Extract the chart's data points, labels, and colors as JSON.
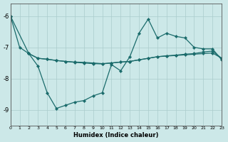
{
  "xlabel": "Humidex (Indice chaleur)",
  "background_color": "#cce8e8",
  "grid_color": "#aacccc",
  "line_color": "#1a6b6b",
  "xlim": [
    0,
    23
  ],
  "ylim": [
    -9.5,
    -5.6
  ],
  "yticks": [
    -9,
    -8,
    -7,
    -6
  ],
  "xticks": [
    0,
    1,
    2,
    3,
    4,
    5,
    6,
    7,
    8,
    9,
    10,
    11,
    12,
    13,
    14,
    15,
    16,
    17,
    18,
    19,
    20,
    21,
    22,
    23
  ],
  "line1_x": [
    0,
    1,
    2,
    3,
    4,
    5,
    6,
    7,
    8,
    9,
    10,
    11,
    12,
    13,
    14,
    15,
    16,
    17,
    18,
    19,
    20,
    21,
    22,
    23
  ],
  "line1_y": [
    -6.0,
    -7.0,
    -7.2,
    -7.6,
    -8.45,
    -8.95,
    -8.85,
    -8.75,
    -8.7,
    -8.55,
    -8.45,
    -7.55,
    -7.75,
    -7.3,
    -6.55,
    -6.1,
    -6.7,
    -6.55,
    -6.65,
    -6.7,
    -7.0,
    -7.05,
    -7.05,
    -7.4
  ],
  "line2_x": [
    0,
    2,
    3,
    4,
    5,
    6,
    7,
    8,
    9,
    10,
    11,
    12,
    13,
    14,
    15,
    16,
    17,
    18,
    19,
    20,
    21,
    22,
    23
  ],
  "line2_y": [
    -6.0,
    -7.2,
    -7.35,
    -7.38,
    -7.42,
    -7.45,
    -7.48,
    -7.5,
    -7.52,
    -7.53,
    -7.5,
    -7.47,
    -7.45,
    -7.4,
    -7.35,
    -7.3,
    -7.27,
    -7.25,
    -7.22,
    -7.2,
    -7.15,
    -7.12,
    -7.35
  ],
  "line3_x": [
    2,
    3,
    4,
    5,
    6,
    7,
    8,
    9,
    10,
    11,
    12,
    13,
    14,
    15,
    16,
    17,
    18,
    19,
    20,
    21,
    22,
    23
  ],
  "line3_y": [
    -7.2,
    -7.35,
    -7.38,
    -7.42,
    -7.45,
    -7.47,
    -7.48,
    -7.5,
    -7.52,
    -7.5,
    -7.47,
    -7.45,
    -7.4,
    -7.35,
    -7.3,
    -7.28,
    -7.26,
    -7.24,
    -7.22,
    -7.2,
    -7.18,
    -7.35
  ]
}
